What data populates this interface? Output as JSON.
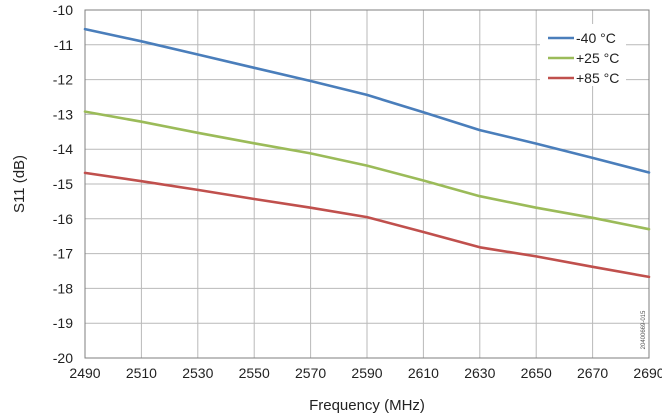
{
  "chart_data": {
    "type": "line",
    "title": "",
    "xlabel": "Frequency (MHz)",
    "ylabel": "S11 (dB)",
    "xlim": [
      2490,
      2690
    ],
    "ylim": [
      -20,
      -10
    ],
    "xticks": [
      "2490",
      "2510",
      "2530",
      "2550",
      "2570",
      "2590",
      "2610",
      "2630",
      "2650",
      "2670",
      "2690"
    ],
    "yticks": [
      "-10",
      "-11",
      "-12",
      "-13",
      "-14",
      "-15",
      "-16",
      "-17",
      "-18",
      "-19",
      "-20"
    ],
    "grid": true,
    "legend_position": "top-right",
    "series": [
      {
        "name": "-40 °C",
        "color": "#4a7ebb",
        "x": [
          2490,
          2510,
          2530,
          2550,
          2570,
          2590,
          2610,
          2630,
          2650,
          2670,
          2690
        ],
        "y": [
          -10.55,
          -10.9,
          -11.28,
          -11.66,
          -12.04,
          -12.44,
          -12.94,
          -13.45,
          -13.84,
          -14.25,
          -14.67
        ]
      },
      {
        "name": "+25 °C",
        "color": "#9bbb59",
        "x": [
          2490,
          2510,
          2530,
          2550,
          2570,
          2590,
          2610,
          2630,
          2650,
          2670,
          2690
        ],
        "y": [
          -12.92,
          -13.21,
          -13.53,
          -13.83,
          -14.12,
          -14.47,
          -14.9,
          -15.35,
          -15.68,
          -15.97,
          -16.3
        ]
      },
      {
        "name": "+85 °C",
        "color": "#c0504d",
        "x": [
          2490,
          2510,
          2530,
          2550,
          2570,
          2590,
          2610,
          2630,
          2650,
          2670,
          2690
        ],
        "y": [
          -14.68,
          -14.92,
          -15.17,
          -15.43,
          -15.68,
          -15.95,
          -16.38,
          -16.82,
          -17.08,
          -17.38,
          -17.67
        ]
      }
    ],
    "annotation": "20400669-015"
  }
}
